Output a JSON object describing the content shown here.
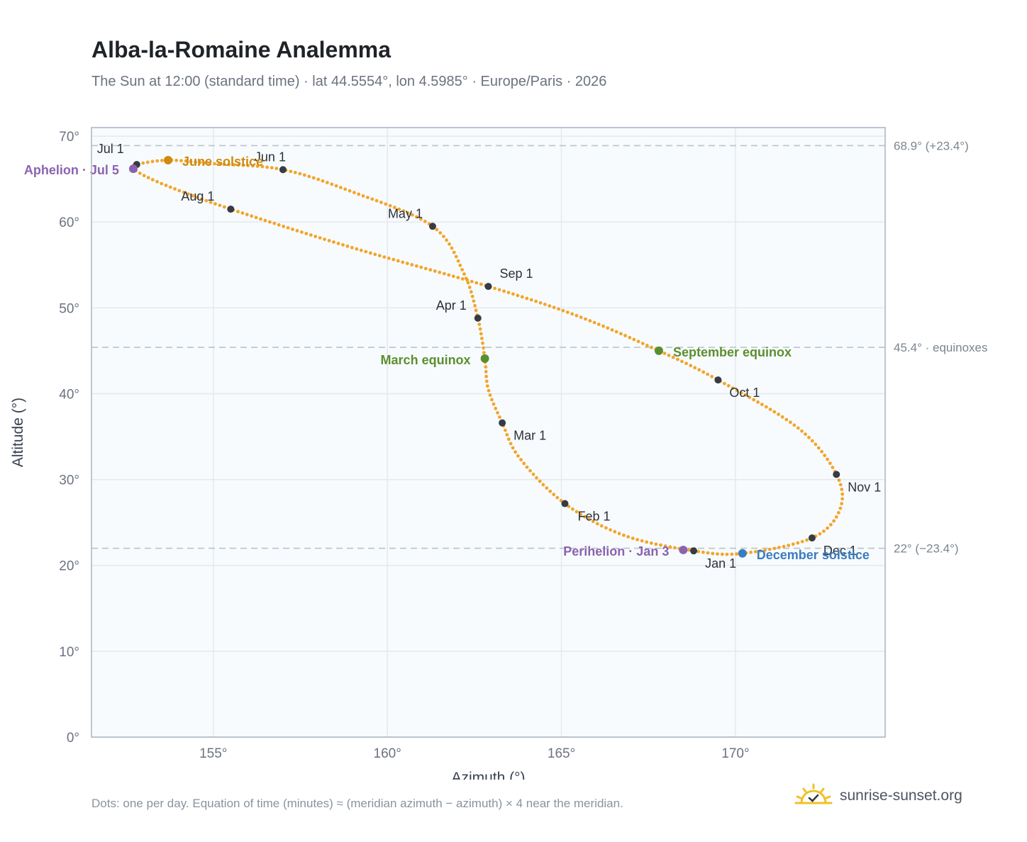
{
  "header": {
    "title": "Alba-la-Romaine Analemma",
    "subtitle": "The Sun at 12:00 (standard time) · lat 44.5554°, lon 4.5985° · Europe/Paris · 2026"
  },
  "footer": {
    "note": "Dots: one per day. Equation of time (minutes) ≈ (meridian azimuth − azimuth) × 4 near the meridian.",
    "brand": "sunrise-sunset.org"
  },
  "colors": {
    "path": "#f2a52b",
    "month_dot": "#363b45",
    "equinox": "#5a8f2e",
    "june_solstice": "#d08a10",
    "december_solstice": "#3a7cc0",
    "apsis": "#8a63b0",
    "ref_line": "#b8c4cc",
    "plot_bg": "#f8fbfd",
    "brand_sun": "#f2c028"
  },
  "chart_data": {
    "type": "scatter",
    "xlabel": "Azimuth (°)",
    "ylabel": "Altitude (°)",
    "xlim": [
      151.5,
      174.3
    ],
    "ylim": [
      0,
      71
    ],
    "x_ticks": [
      155,
      160,
      165,
      170
    ],
    "x_tick_labels": [
      "155°",
      "160°",
      "165°",
      "170°"
    ],
    "y_ticks": [
      0,
      10,
      20,
      30,
      40,
      50,
      60,
      70
    ],
    "y_tick_labels": [
      "0°",
      "10°",
      "20°",
      "30°",
      "40°",
      "50°",
      "60°",
      "70°"
    ],
    "grid": true,
    "reference_lines": [
      {
        "y": 68.9,
        "label": "68.9° (+23.4°)"
      },
      {
        "y": 45.4,
        "label": "45.4° · equinoxes"
      },
      {
        "y": 22.0,
        "label": "22° (−23.4°)"
      }
    ],
    "monthly_points": [
      {
        "label": "Jan 1",
        "az": 168.8,
        "alt": 21.7
      },
      {
        "label": "Feb 1",
        "az": 165.1,
        "alt": 27.2
      },
      {
        "label": "Mar 1",
        "az": 163.3,
        "alt": 36.6
      },
      {
        "label": "Apr 1",
        "az": 162.6,
        "alt": 48.8
      },
      {
        "label": "May 1",
        "az": 161.3,
        "alt": 59.5
      },
      {
        "label": "Jun 1",
        "az": 157.0,
        "alt": 66.1
      },
      {
        "label": "Jul 1",
        "az": 152.8,
        "alt": 66.7
      },
      {
        "label": "Aug 1",
        "az": 155.5,
        "alt": 61.5
      },
      {
        "label": "Sep 1",
        "az": 162.9,
        "alt": 52.5
      },
      {
        "label": "Oct 1",
        "az": 169.5,
        "alt": 41.6
      },
      {
        "label": "Nov 1",
        "az": 172.9,
        "alt": 30.6
      },
      {
        "label": "Dec 1",
        "az": 172.2,
        "alt": 23.2
      }
    ],
    "special_points": [
      {
        "key": "march_equinox",
        "label": "March equinox",
        "az": 162.8,
        "alt": 44.1
      },
      {
        "key": "june_solstice",
        "label": "June solstice",
        "az": 153.7,
        "alt": 67.2
      },
      {
        "key": "september_equinox",
        "label": "September equinox",
        "az": 167.8,
        "alt": 45.0
      },
      {
        "key": "december_solstice",
        "label": "December solstice",
        "az": 170.2,
        "alt": 21.4
      },
      {
        "key": "perihelion",
        "label": "Perihelion · Jan 3",
        "az": 168.5,
        "alt": 21.8
      },
      {
        "key": "aphelion",
        "label": "Aphelion · Jul 5",
        "az": 152.7,
        "alt": 66.2
      }
    ],
    "path_nodes": [
      [
        168.8,
        21.7
      ],
      [
        166.8,
        23.5
      ],
      [
        165.1,
        27.2
      ],
      [
        163.8,
        32.5
      ],
      [
        163.3,
        36.6
      ],
      [
        162.9,
        40.5
      ],
      [
        162.8,
        44.1
      ],
      [
        162.6,
        48.8
      ],
      [
        162.2,
        54.0
      ],
      [
        161.3,
        59.5
      ],
      [
        159.0,
        63.5
      ],
      [
        157.0,
        66.1
      ],
      [
        155.0,
        66.8
      ],
      [
        153.7,
        67.2
      ],
      [
        152.8,
        66.7
      ],
      [
        152.7,
        66.2
      ],
      [
        153.5,
        64.5
      ],
      [
        155.5,
        61.5
      ],
      [
        159.0,
        57.0
      ],
      [
        162.9,
        52.5
      ],
      [
        165.5,
        49.0
      ],
      [
        167.8,
        45.0
      ],
      [
        169.5,
        41.6
      ],
      [
        171.8,
        36.0
      ],
      [
        172.9,
        30.6
      ],
      [
        173.0,
        26.5
      ],
      [
        172.2,
        23.2
      ],
      [
        170.2,
        21.4
      ],
      [
        168.8,
        21.7
      ]
    ]
  }
}
